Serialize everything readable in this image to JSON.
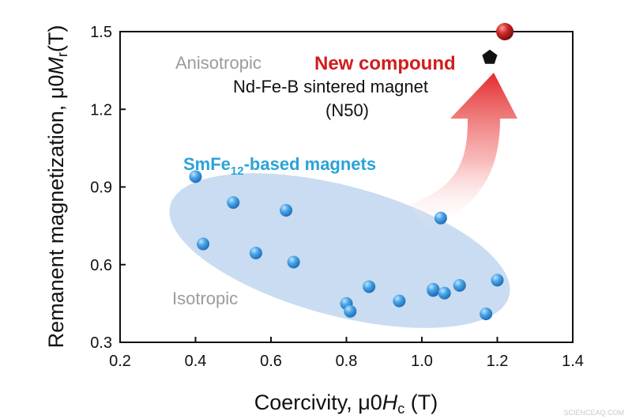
{
  "chart_data": {
    "type": "scatter",
    "xlabel": "Coercivity, μ0Hc (T)",
    "ylabel": "Remanent magnetization, μ0Mr(T)",
    "xlim": [
      0.2,
      1.4
    ],
    "ylim": [
      0.3,
      1.5
    ],
    "xticks": [
      "0.2",
      "0.4",
      "0.6",
      "0.8",
      "1.0",
      "1.2",
      "1.4"
    ],
    "yticks": [
      "0.3",
      "0.6",
      "0.9",
      "1.2",
      "1.5"
    ],
    "grid": false,
    "series": [
      {
        "name": "SmFe12-based magnets",
        "color": "#3a9de0",
        "points": [
          {
            "x": 0.4,
            "y": 0.94
          },
          {
            "x": 0.42,
            "y": 0.68
          },
          {
            "x": 0.5,
            "y": 0.84
          },
          {
            "x": 0.56,
            "y": 0.645
          },
          {
            "x": 0.64,
            "y": 0.81
          },
          {
            "x": 0.66,
            "y": 0.61
          },
          {
            "x": 0.8,
            "y": 0.45
          },
          {
            "x": 0.81,
            "y": 0.42
          },
          {
            "x": 0.86,
            "y": 0.515
          },
          {
            "x": 0.94,
            "y": 0.46
          },
          {
            "x": 1.03,
            "y": 0.5
          },
          {
            "x": 1.03,
            "y": 0.505
          },
          {
            "x": 1.05,
            "y": 0.78
          },
          {
            "x": 1.06,
            "y": 0.49
          },
          {
            "x": 1.1,
            "y": 0.52
          },
          {
            "x": 1.17,
            "y": 0.41
          },
          {
            "x": 1.2,
            "y": 0.54
          }
        ]
      },
      {
        "name": "New compound",
        "color": "#c81e1e",
        "points": [
          {
            "x": 1.22,
            "y": 1.5
          }
        ]
      },
      {
        "name": "Nd-Fe-B sintered magnet",
        "color": "#111111",
        "marker": "pentagon",
        "points": [
          {
            "x": 1.18,
            "y": 1.4
          }
        ]
      }
    ],
    "annotations": {
      "anisotropic": "Anisotropic",
      "isotropic": "Isotropic",
      "smfe_label_main": "SmFe",
      "smfe_label_sub": "12",
      "smfe_label_tail": "-based magnets",
      "new_compound": "New compound",
      "ndfeb_line1": "Nd-Fe-B sintered magnet",
      "ndfeb_line2": "(N50)"
    },
    "region_color": "#bfd6ee",
    "arrow_color": "#e8393a"
  },
  "watermark": "SCIENCEAQ.COM"
}
